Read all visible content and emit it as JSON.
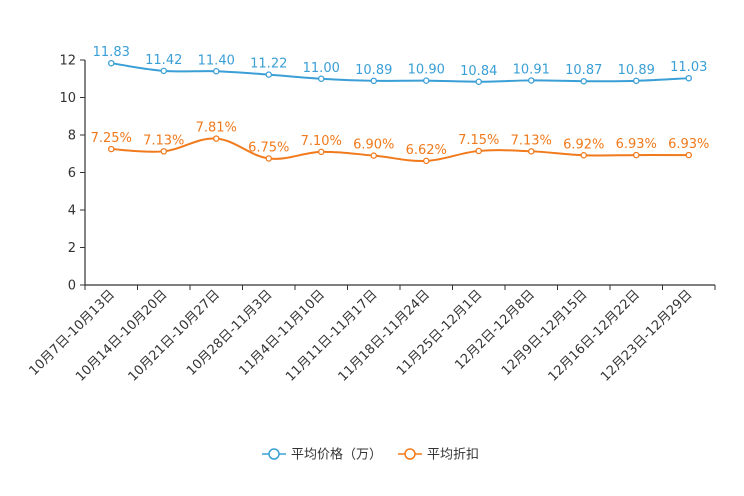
{
  "chart_data": {
    "type": "line",
    "categories": [
      "10月7日-10月13日",
      "10月14日-10月20日",
      "10月21日-10月27日",
      "10月28日-11月3日",
      "11月4日-11月10日",
      "11月11日-11月17日",
      "11月18日-11月24日",
      "11月25日-12月1日",
      "12月2日-12月8日",
      "12月9日-12月15日",
      "12月16日-12月22日",
      "12月23日-12月29日"
    ],
    "ylim": [
      0,
      12
    ],
    "yticks": [
      "0",
      "2",
      "4",
      "6",
      "8",
      "10",
      "12"
    ],
    "series": [
      {
        "name": "平均价格（万）",
        "color": "#3a9fd6",
        "values": [
          11.83,
          11.42,
          11.4,
          11.22,
          11.0,
          10.89,
          10.9,
          10.84,
          10.91,
          10.87,
          10.89,
          11.03
        ],
        "labels": [
          "11.83",
          "11.42",
          "11.40",
          "11.22",
          "11.00",
          "10.89",
          "10.90",
          "10.84",
          "10.91",
          "10.87",
          "10.89",
          "11.03"
        ]
      },
      {
        "name": "平均折扣",
        "color": "#f07a1c",
        "values": [
          7.25,
          7.13,
          7.81,
          6.75,
          7.1,
          6.9,
          6.62,
          7.15,
          7.13,
          6.92,
          6.93,
          6.93
        ],
        "labels": [
          "7.25%",
          "7.13%",
          "7.81%",
          "6.75%",
          "7.10%",
          "6.90%",
          "6.62%",
          "7.15%",
          "7.13%",
          "6.92%",
          "6.93%",
          "6.93%"
        ]
      }
    ]
  }
}
